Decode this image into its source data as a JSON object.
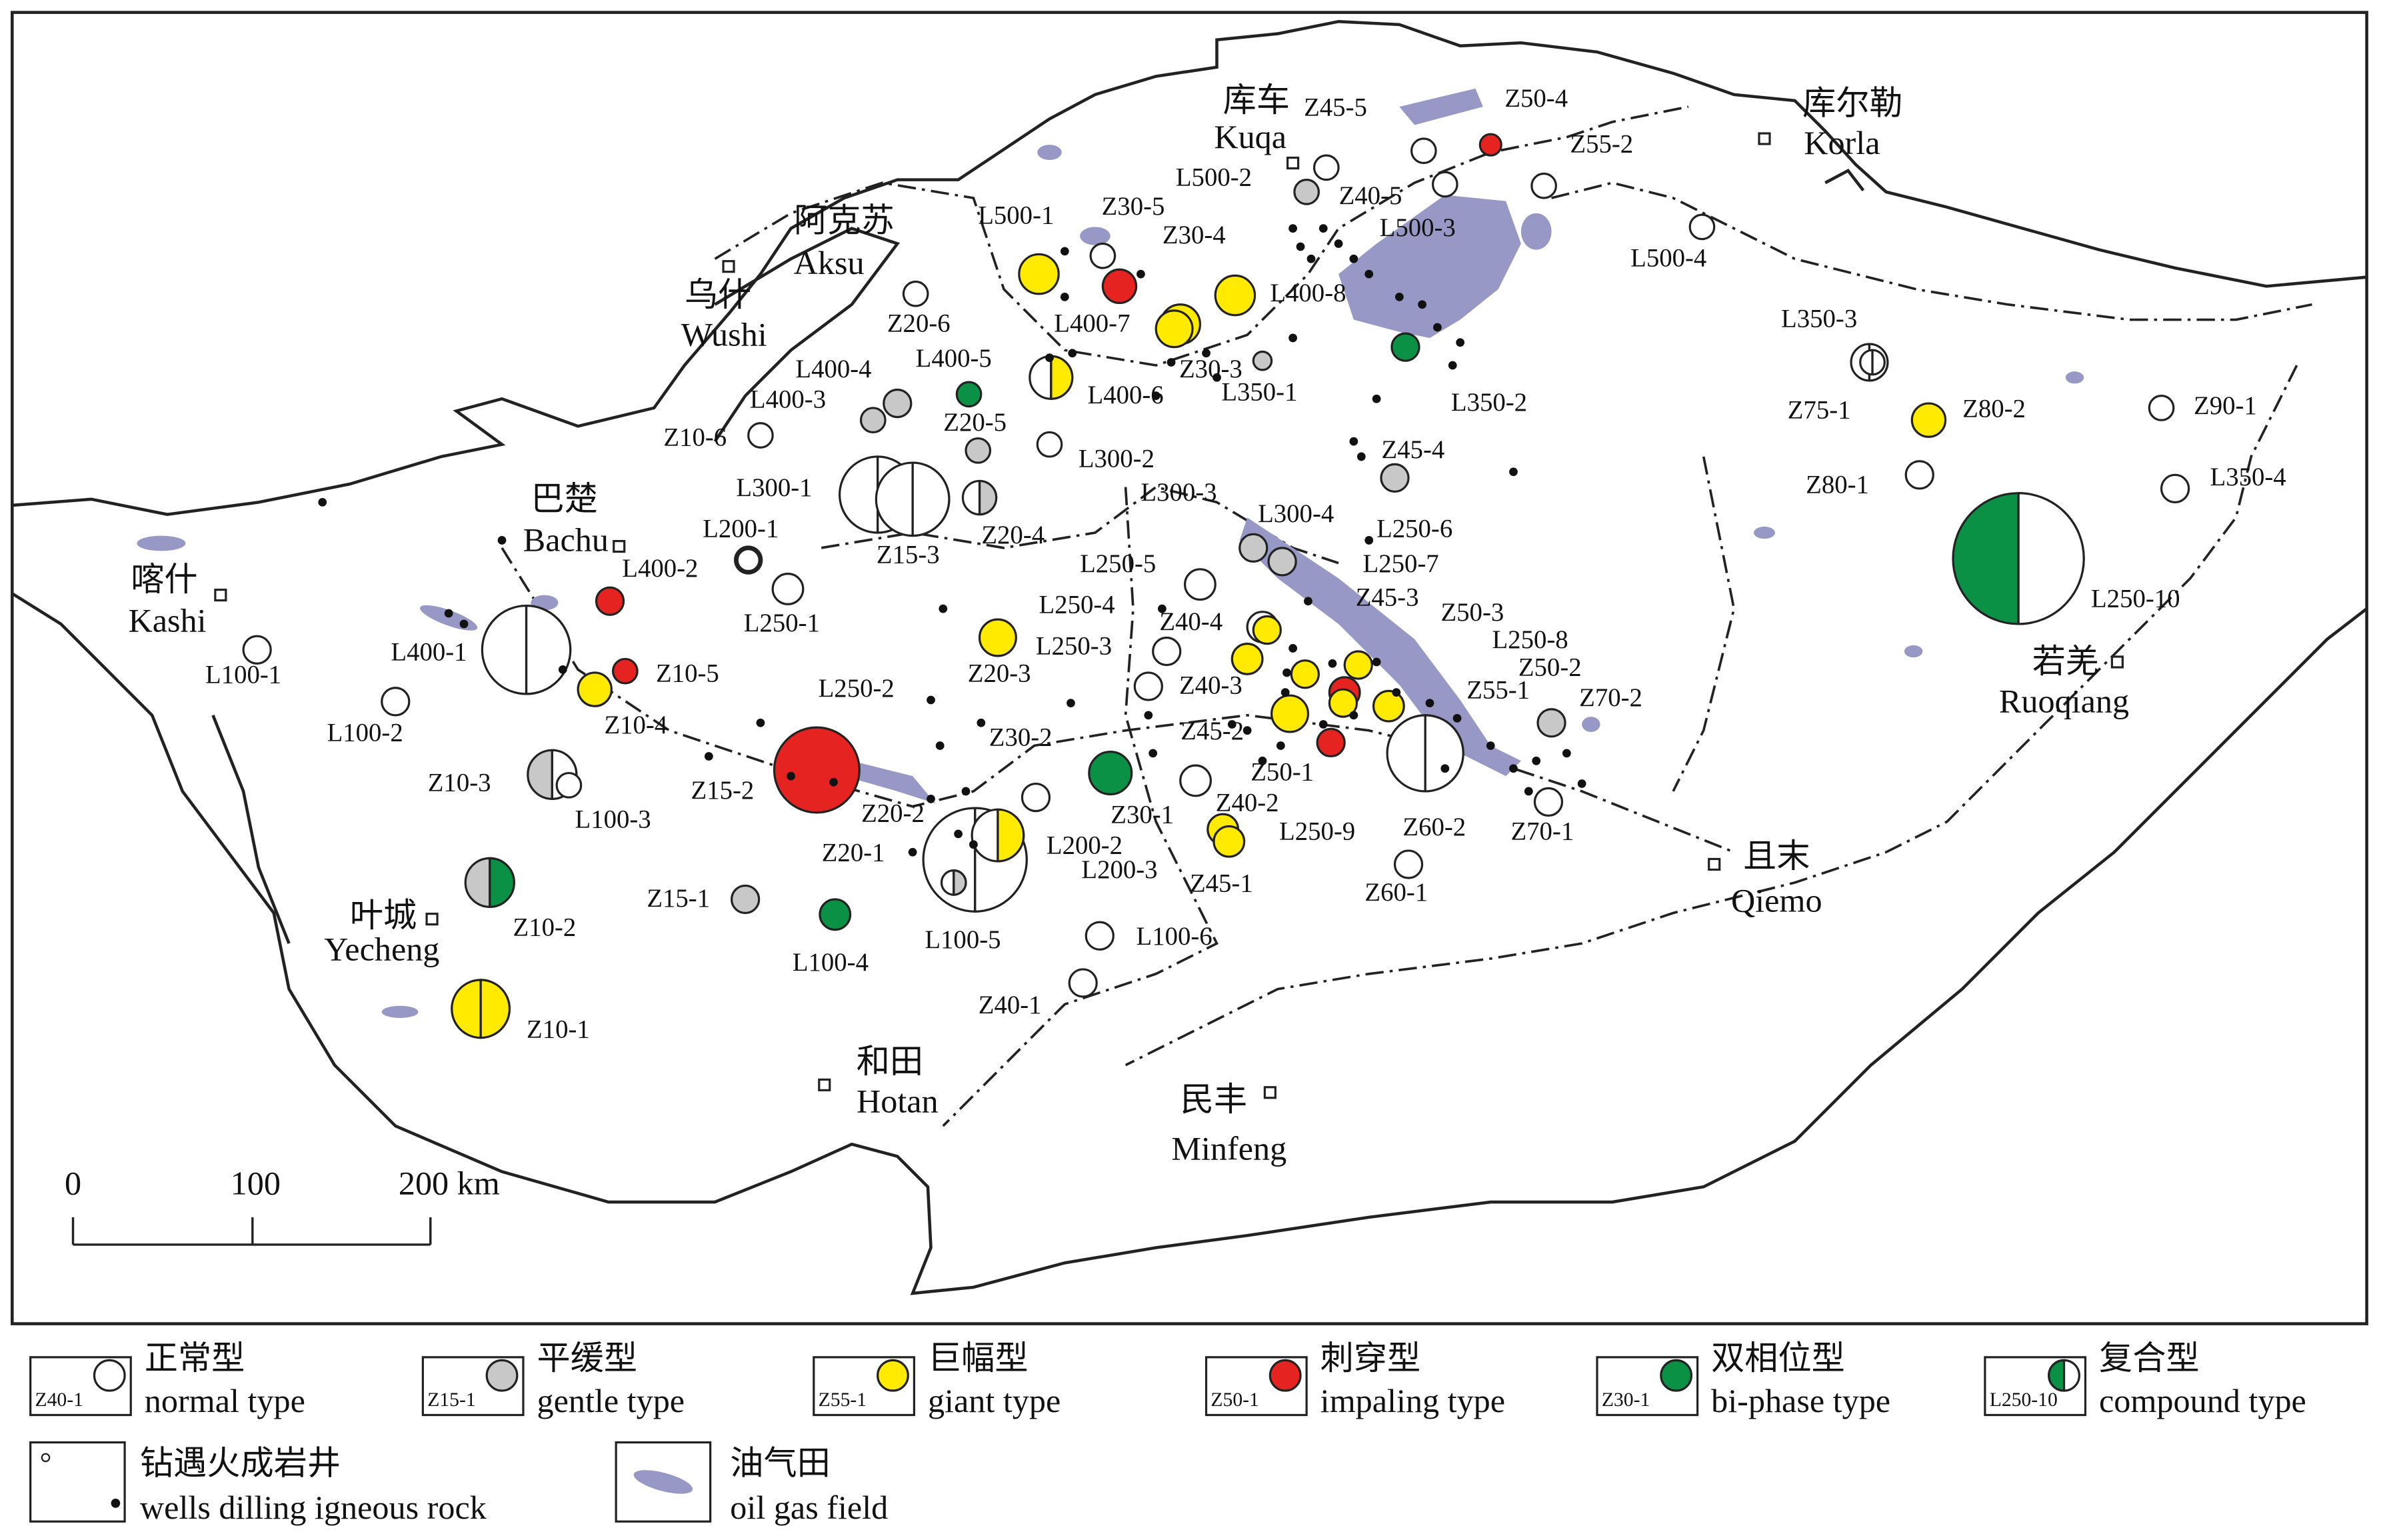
{
  "cities": [
    {
      "zh": "库车",
      "en": "Kuqa"
    },
    {
      "zh": "库尔勒",
      "en": "Korla"
    },
    {
      "zh": "阿克苏",
      "en": "Aksu"
    },
    {
      "zh": "乌什",
      "en": "Wushi"
    },
    {
      "zh": "巴楚",
      "en": "Bachu"
    },
    {
      "zh": "喀什",
      "en": "Kashi"
    },
    {
      "zh": "叶城",
      "en": "Yecheng"
    },
    {
      "zh": "和田",
      "en": "Hotan"
    },
    {
      "zh": "民丰",
      "en": "Minfeng"
    },
    {
      "zh": "且末",
      "en": "Qiemo"
    },
    {
      "zh": "若羌",
      "en": "Ruoqiang"
    }
  ],
  "wells": [
    "Z50-4",
    "Z45-5",
    "Z55-2",
    "L500-2",
    "Z40-5",
    "L500-3",
    "L500-1",
    "Z30-5",
    "Z30-4",
    "L400-8",
    "L400-7",
    "Z30-3",
    "L350-1",
    "L350-2",
    "L500-4",
    "L350-3",
    "Z75-1",
    "Z80-2",
    "Z90-1",
    "Z80-1",
    "L350-4",
    "L250-10",
    "Z20-6",
    "L400-4",
    "L400-5",
    "L400-3",
    "L400-6",
    "Z20-5",
    "Z10-6",
    "L300-2",
    "Z45-4",
    "L300-1",
    "Z20-4",
    "Z15-3",
    "L300-3",
    "L300-4",
    "L250-6",
    "L200-1",
    "L250-7",
    "L400-2",
    "L250-5",
    "L250-1",
    "Z45-3",
    "L250-4",
    "Z50-3",
    "Z40-4",
    "L400-1",
    "Z10-5",
    "L100-1",
    "L250-8",
    "L250-3",
    "Z20-3",
    "Z50-2",
    "L250-2",
    "Z40-3",
    "Z10-4",
    "L100-2",
    "Z55-1",
    "Z70-2",
    "Z45-2",
    "Z30-2",
    "Z50-1",
    "Z10-3",
    "Z15-2",
    "L100-3",
    "Z20-2",
    "Z30-1",
    "Z40-2",
    "L250-9",
    "Z60-2",
    "Z70-1",
    "L200-2",
    "Z20-1",
    "L200-3",
    "Z45-1",
    "Z60-1",
    "Z15-1",
    "Z10-2",
    "L100-6",
    "L100-5",
    "L100-4",
    "Z40-1",
    "Z10-1"
  ],
  "scale_bar": [
    "0",
    "100",
    "200 km"
  ],
  "legend": [
    {
      "sample": "Z40-1",
      "zh": "正常型",
      "en": "normal type"
    },
    {
      "sample": "Z15-1",
      "zh": "平缓型",
      "en": "gentle type"
    },
    {
      "sample": "Z55-1",
      "zh": "巨幅型",
      "en": "giant type"
    },
    {
      "sample": "Z50-1",
      "zh": "刺穿型",
      "en": "impaling type"
    },
    {
      "sample": "Z30-1",
      "zh": "双相位型",
      "en": "bi-phase type"
    },
    {
      "sample": "L250-10",
      "zh": "复合型",
      "en": "compound type"
    }
  ],
  "legend_other": [
    {
      "zh": "钻遇火成岩井",
      "en": "wells dilling igneous rock"
    },
    {
      "zh": "油气田",
      "en": "oil gas field"
    }
  ]
}
